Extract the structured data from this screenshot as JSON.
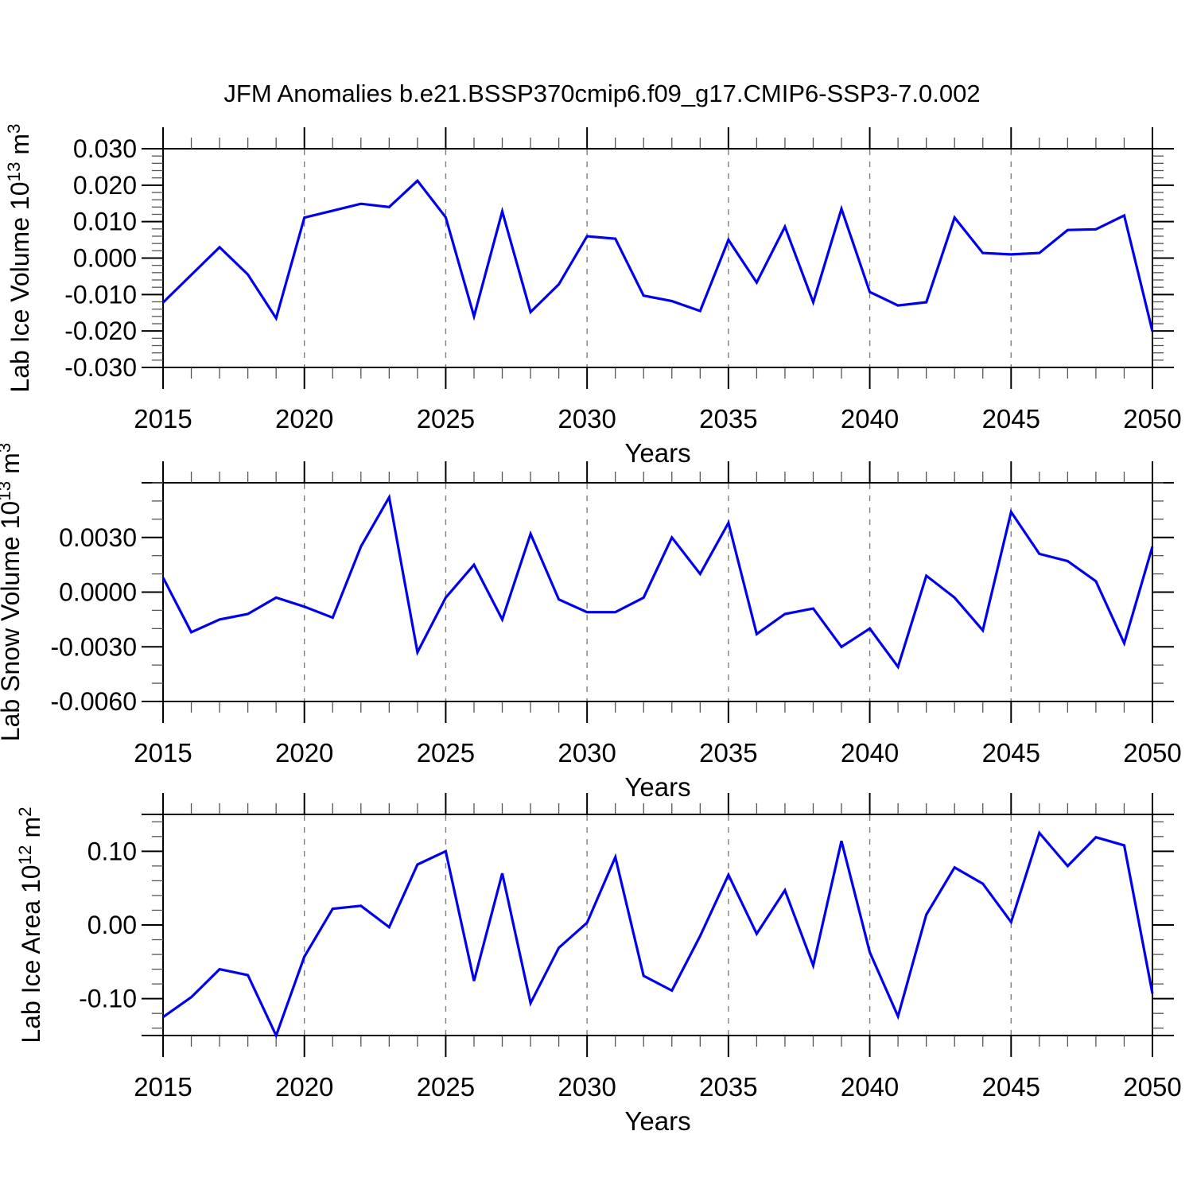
{
  "title": "JFM Anomalies b.e21.BSSP370cmip6.f09_g17.CMIP6-SSP3-7.0.002",
  "colors": {
    "line": "#0000EE",
    "frame": "#000000",
    "grid": "#808080",
    "minor_tick": "#555555",
    "text": "#000000"
  },
  "chart_data": {
    "type": "line",
    "title": "JFM Anomalies b.e21.BSSP370cmip6.f09_g17.CMIP6-SSP3-7.0.002",
    "xlabel": "Years",
    "x": [
      2015,
      2016,
      2017,
      2018,
      2019,
      2020,
      2021,
      2022,
      2023,
      2024,
      2025,
      2026,
      2027,
      2028,
      2029,
      2030,
      2031,
      2032,
      2033,
      2034,
      2035,
      2036,
      2037,
      2038,
      2039,
      2040,
      2041,
      2042,
      2043,
      2044,
      2045,
      2046,
      2047,
      2048,
      2049,
      2050
    ],
    "x_major_ticks": [
      2015,
      2020,
      2025,
      2030,
      2035,
      2040,
      2045,
      2050
    ],
    "x_minor_step": 1,
    "gridline_years": [
      2020,
      2025,
      2030,
      2035,
      2040,
      2045
    ],
    "grid_style": "dashed-vertical",
    "legend": "none",
    "subplots": [
      {
        "name": "lab-ice-volume",
        "ylabel_text": "Lab Ice Volume 10^13 m^3",
        "ylabel_parts": [
          {
            "text": "Lab Ice Volume 10",
            "sup": false
          },
          {
            "text": "13",
            "sup": true
          },
          {
            "text": " m",
            "sup": false
          },
          {
            "text": "3",
            "sup": true
          }
        ],
        "ylim": [
          -0.03,
          0.03
        ],
        "ytick_values": [
          0.03,
          0.02,
          0.01,
          0.0,
          -0.01,
          -0.02,
          -0.03
        ],
        "ytick_labels": [
          "0.030",
          "0.020",
          "0.010",
          "0.000",
          "-0.010",
          "-0.020",
          "-0.030"
        ],
        "y_minor_step": 0.002,
        "values": [
          -0.0122,
          -0.0046,
          0.003,
          -0.0045,
          -0.0165,
          0.0111,
          0.013,
          0.0149,
          0.014,
          0.0212,
          0.0112,
          -0.016,
          0.0128,
          -0.0148,
          -0.0072,
          0.006,
          0.0053,
          -0.0103,
          -0.0118,
          -0.0145,
          0.005,
          -0.0067,
          0.0086,
          -0.0121,
          0.0135,
          -0.0093,
          -0.013,
          -0.0121,
          0.0111,
          0.0014,
          0.001,
          0.0014,
          0.0077,
          0.0079,
          0.0117,
          -0.0201
        ]
      },
      {
        "name": "lab-snow-volume",
        "ylabel_text": "Lab Snow Volume 10^13 m^3",
        "ylabel_parts": [
          {
            "text": "Lab Snow Volume 10",
            "sup": false
          },
          {
            "text": "13",
            "sup": true
          },
          {
            "text": " m",
            "sup": false
          },
          {
            "text": "3",
            "sup": true
          }
        ],
        "ylim": [
          -0.006,
          0.006
        ],
        "ytick_values": [
          0.003,
          0.0,
          -0.003,
          -0.006
        ],
        "ytick_labels": [
          "0.0030",
          "0.0000",
          "-0.0030",
          "-0.0060"
        ],
        "y_minor_step": 0.001,
        "values": [
          0.0008,
          -0.0022,
          -0.0015,
          -0.0012,
          -0.0003,
          -0.0008,
          -0.0014,
          0.0025,
          0.0052,
          -0.0033,
          -0.0003,
          0.0015,
          -0.0015,
          0.0032,
          -0.0004,
          -0.0011,
          -0.0011,
          -0.0003,
          0.003,
          0.001,
          0.0038,
          -0.0023,
          -0.0012,
          -0.0009,
          -0.003,
          -0.002,
          -0.0041,
          0.0009,
          -0.0003,
          -0.0021,
          0.0044,
          0.0021,
          0.0017,
          0.0006,
          -0.0028,
          0.0025
        ]
      },
      {
        "name": "lab-ice-area",
        "ylabel_text": "Lab Ice Area 10^12 m^2",
        "ylabel_parts": [
          {
            "text": "Lab Ice Area 10",
            "sup": false
          },
          {
            "text": "12",
            "sup": true
          },
          {
            "text": " m",
            "sup": false
          },
          {
            "text": "2",
            "sup": true
          }
        ],
        "ylim": [
          -0.15,
          0.15
        ],
        "ytick_values": [
          0.1,
          0.0,
          -0.1
        ],
        "ytick_labels": [
          "0.10",
          "0.00",
          "-0.10"
        ],
        "y_minor_step": 0.02,
        "values": [
          -0.125,
          -0.098,
          -0.06,
          -0.068,
          -0.15,
          -0.043,
          0.022,
          0.026,
          -0.003,
          0.082,
          0.1,
          -0.076,
          0.07,
          -0.106,
          -0.031,
          0.003,
          0.092,
          -0.069,
          -0.089,
          -0.015,
          0.068,
          -0.012,
          0.047,
          -0.055,
          0.114,
          -0.037,
          -0.124,
          0.014,
          0.078,
          0.056,
          0.004,
          0.125,
          0.08,
          0.119,
          0.108,
          -0.093
        ]
      }
    ]
  }
}
